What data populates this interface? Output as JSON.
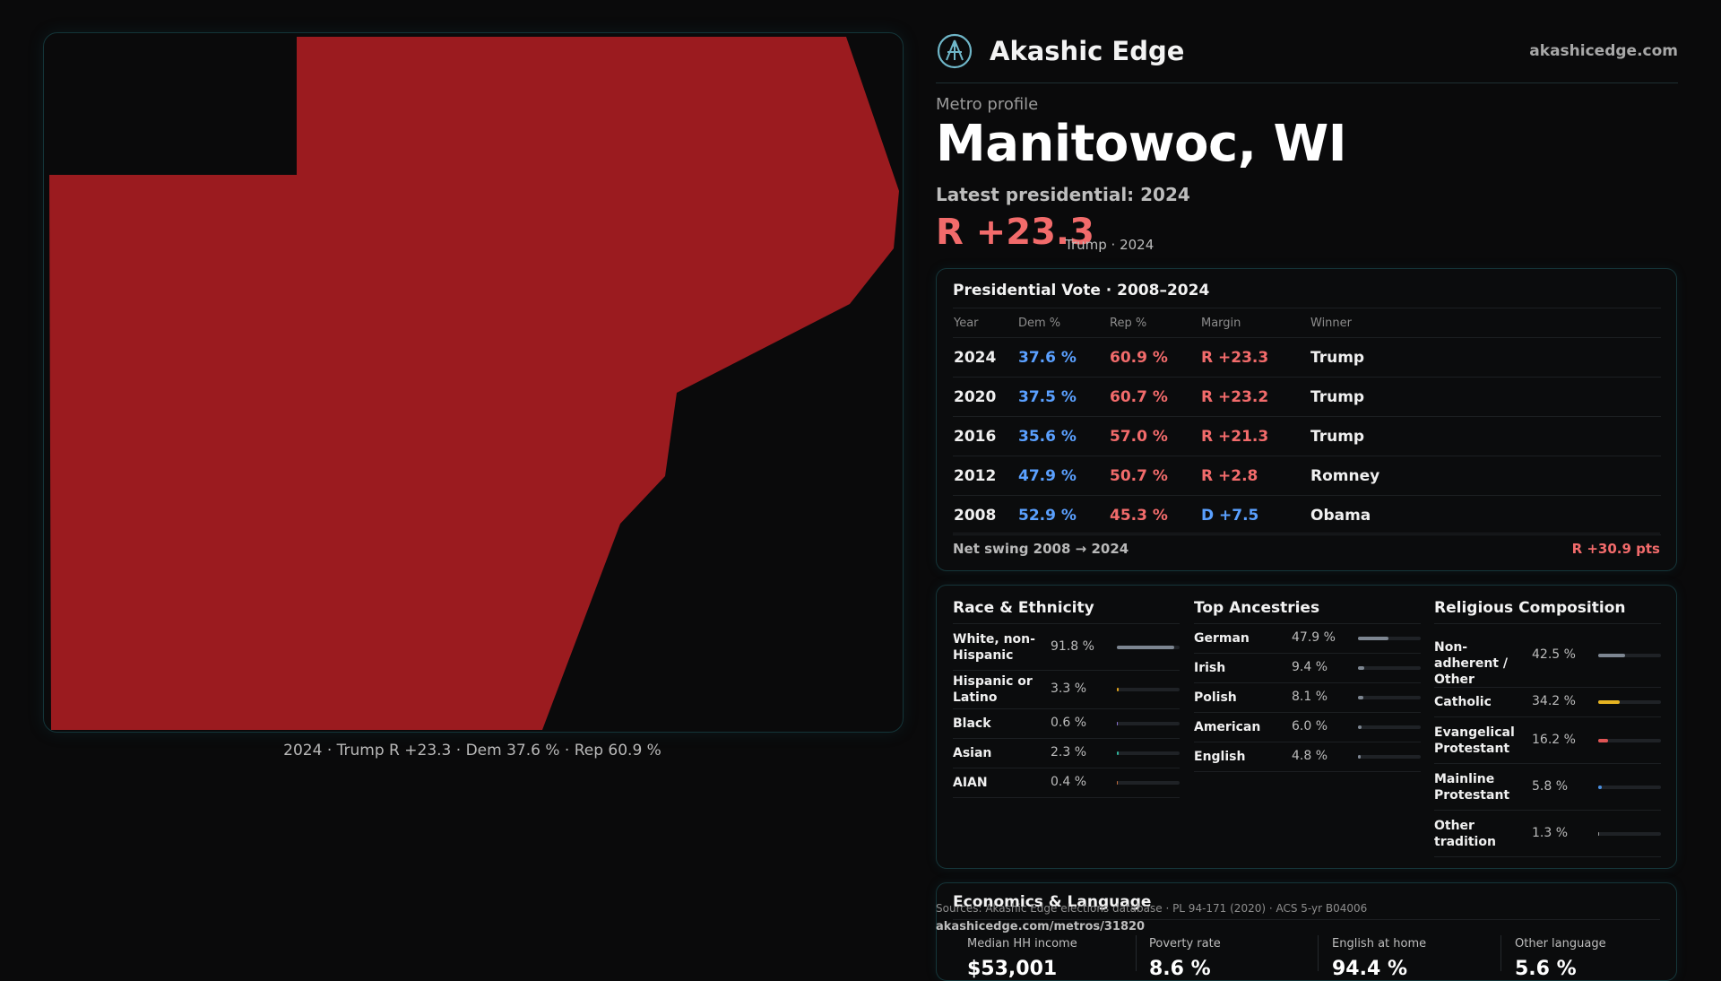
{
  "brand": {
    "name": "Akashic Edge",
    "url": "akashicedge.com"
  },
  "profile": {
    "eyebrow": "Metro profile",
    "title": "Manitowoc, WI",
    "latest": "Latest presidential: 2024",
    "margin": "R +23.3",
    "margin_sub": "Trump · 2024"
  },
  "map": {
    "caption": "2024 · Trump R +23.3 · Dem 37.6 % · Rep 60.9 %",
    "fill_color": "#9b1b1f"
  },
  "vote": {
    "title": "Presidential Vote · 2008–2024",
    "headers": {
      "year": "Year",
      "dem": "Dem %",
      "rep": "Rep %",
      "margin": "Margin",
      "winner": "Winner"
    },
    "rows": [
      {
        "year": "2024",
        "dem": "37.6 %",
        "rep": "60.9 %",
        "margin": "R +23.3",
        "winner": "Trump"
      },
      {
        "year": "2020",
        "dem": "37.5 %",
        "rep": "60.7 %",
        "margin": "R +23.2",
        "winner": "Trump"
      },
      {
        "year": "2016",
        "dem": "35.6 %",
        "rep": "57.0 %",
        "margin": "R +21.3",
        "winner": "Trump"
      },
      {
        "year": "2012",
        "dem": "47.9 %",
        "rep": "50.7 %",
        "margin": "R +2.8",
        "winner": "Romney"
      },
      {
        "year": "2008",
        "dem": "52.9 %",
        "rep": "45.3 %",
        "margin": "D +7.5",
        "winner": "Obama"
      }
    ],
    "swing_label": "Net swing 2008 → 2024",
    "swing_value": "R +30.9 pts"
  },
  "race": {
    "title": "Race & Ethnicity",
    "items": [
      {
        "label": "White, non-Hispanic",
        "value": "91.8 %",
        "pct": 91.8,
        "color": "#7d8691"
      },
      {
        "label": "Hispanic or Latino",
        "value": "3.3 %",
        "pct": 3.3,
        "color": "#e0a21a"
      },
      {
        "label": "Black",
        "value": "0.6 %",
        "pct": 0.6,
        "color": "#8a6fd0"
      },
      {
        "label": "Asian",
        "value": "2.3 %",
        "pct": 2.3,
        "color": "#2fb39a"
      },
      {
        "label": "AIAN",
        "value": "0.4 %",
        "pct": 0.4,
        "color": "#c06a3a"
      }
    ]
  },
  "ancestry": {
    "title": "Top Ancestries",
    "items": [
      {
        "label": "German",
        "value": "47.9 %",
        "pct": 47.9,
        "color": "#7d8691"
      },
      {
        "label": "Irish",
        "value": "9.4 %",
        "pct": 9.4,
        "color": "#7d8691"
      },
      {
        "label": "Polish",
        "value": "8.1 %",
        "pct": 8.1,
        "color": "#7d8691"
      },
      {
        "label": "American",
        "value": "6.0 %",
        "pct": 6.0,
        "color": "#7d8691"
      },
      {
        "label": "English",
        "value": "4.8 %",
        "pct": 4.8,
        "color": "#7d8691"
      }
    ]
  },
  "religion": {
    "title": "Religious Composition",
    "items": [
      {
        "label": "Non-adherent / Other",
        "value": "42.5 %",
        "pct": 42.5,
        "color": "#7d8691"
      },
      {
        "label": "Catholic",
        "value": "34.2 %",
        "pct": 34.2,
        "color": "#e6b422"
      },
      {
        "label": "Evangelical Protestant",
        "value": "16.2 %",
        "pct": 16.2,
        "color": "#e05555"
      },
      {
        "label": "Mainline Protestant",
        "value": "5.8 %",
        "pct": 5.8,
        "color": "#4a8fe0"
      },
      {
        "label": "Other tradition",
        "value": "1.3 %",
        "pct": 1.3,
        "color": "#9a9a9a"
      }
    ]
  },
  "econ": {
    "title": "Economics & Language",
    "stats": [
      {
        "label": "Median HH income",
        "value": "$53,001"
      },
      {
        "label": "Poverty rate",
        "value": "8.6 %"
      },
      {
        "label": "English at home",
        "value": "94.4 %"
      },
      {
        "label": "Other language",
        "value": "5.6 %"
      }
    ]
  },
  "footer": {
    "sources": "Sources: Akashic Edge elections database · PL 94-171 (2020) · ACS 5-yr B04006",
    "url": "akashicedge.com/metros/31820"
  }
}
